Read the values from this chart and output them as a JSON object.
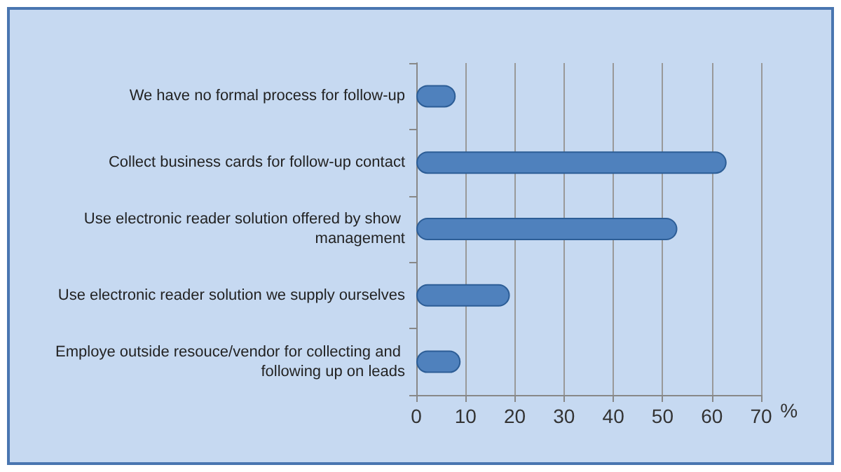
{
  "chart_data": {
    "type": "bar",
    "orientation": "horizontal",
    "xlabel": "%",
    "categories": [
      "We have no formal process for follow-up",
      "Collect business cards for follow-up contact",
      "Use electronic reader solution offered by show management",
      "Use electronic reader solution we supply ourselves",
      "Employe outside resouce/vendor for collecting and following up on leads"
    ],
    "values": [
      8,
      63,
      53,
      19,
      9
    ],
    "color": "#4f81bd",
    "xlim": [
      0,
      70
    ],
    "xticks": [
      0,
      10,
      20,
      30,
      40,
      50,
      60,
      70
    ],
    "grid": "x"
  }
}
